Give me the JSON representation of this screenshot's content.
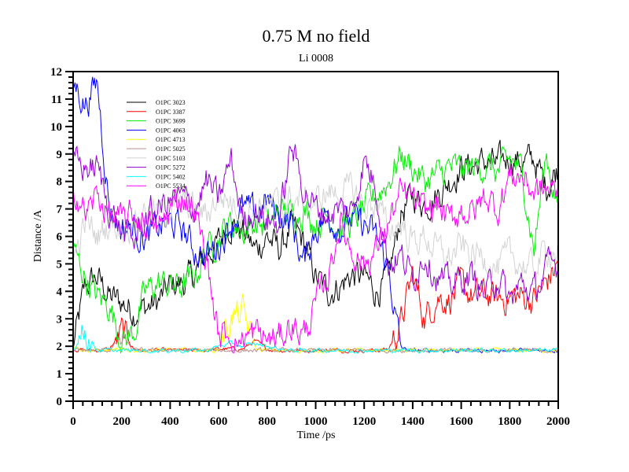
{
  "chart_data": {
    "type": "line",
    "title": "0.75 M no field",
    "subtitle": "Li 0008",
    "xlabel": "Time /ps",
    "ylabel": "Distance /A",
    "xlim": [
      0,
      2000
    ],
    "ylim": [
      0,
      12
    ],
    "x_ticks": [
      "0",
      "200",
      "400",
      "600",
      "800",
      "1000",
      "1200",
      "1400",
      "1600",
      "1800",
      "2000"
    ],
    "y_ticks": [
      "0",
      "1",
      "2",
      "3",
      "4",
      "5",
      "6",
      "7",
      "8",
      "9",
      "10",
      "11",
      "12"
    ],
    "grid": false,
    "legend_position": "top-left",
    "x_step": 50,
    "series": [
      {
        "name": "O1PC 3023",
        "color": "#000000",
        "values": [
          1.9,
          4.2,
          4.5,
          3.8,
          3.6,
          3.3,
          3.4,
          3.6,
          4.2,
          4.3,
          4.6,
          5.3,
          5.8,
          6.5,
          6.2,
          5.5,
          6.0,
          5.5,
          6.3,
          5.8,
          4.5,
          4.0,
          4.2,
          4.6,
          4.5,
          4.0,
          4.4,
          6.8,
          7.5,
          7.2,
          7.5,
          8.0,
          8.5,
          8.6,
          8.7,
          8.6,
          8.9,
          8.7,
          8.8,
          7.8,
          8.5
        ]
      },
      {
        "name": "O1PC 3387",
        "color": "#ff0000",
        "values": [
          1.9,
          1.85,
          1.85,
          1.9,
          2.5,
          1.9,
          1.85,
          1.85,
          1.85,
          1.85,
          1.85,
          1.85,
          1.9,
          1.9,
          1.9,
          2.2,
          1.9,
          1.85,
          1.85,
          1.85,
          1.85,
          1.85,
          1.85,
          1.85,
          1.85,
          1.85,
          1.9,
          2.8,
          4.6,
          3.0,
          3.8,
          3.7,
          4.2,
          3.8,
          3.9,
          3.7,
          3.8,
          3.8,
          3.7,
          4.3,
          5.0
        ]
      },
      {
        "name": "O1PC 3699",
        "color": "#00ee00",
        "values": [
          5.5,
          4.5,
          3.8,
          3.5,
          2.2,
          2.5,
          4.0,
          4.3,
          4.2,
          4.2,
          4.5,
          5.5,
          6.0,
          6.5,
          6.2,
          6.5,
          6.3,
          7.0,
          6.8,
          7.0,
          6.5,
          6.8,
          6.3,
          6.5,
          7.0,
          7.5,
          8.0,
          9.0,
          8.5,
          8.0,
          8.2,
          8.5,
          8.4,
          8.5,
          8.6,
          8.3,
          8.8,
          8.4,
          5.5,
          9.0,
          7.0
        ]
      },
      {
        "name": "O1PC 4063",
        "color": "#0000ff",
        "values": [
          11.7,
          10.8,
          11.6,
          7.0,
          6.3,
          6.3,
          5.9,
          6.3,
          6.5,
          6.3,
          5.5,
          5.3,
          5.7,
          6.5,
          7.0,
          6.8,
          7.3,
          6.8,
          6.5,
          5.0,
          6.3,
          6.8,
          6.3,
          6.6,
          6.4,
          6.0,
          4.8,
          1.9,
          1.85,
          1.85,
          1.85,
          1.85,
          1.85,
          1.85,
          1.85,
          1.85,
          1.85,
          1.85,
          1.85,
          1.85,
          1.85
        ]
      },
      {
        "name": "O1PC 4713",
        "color": "#ffff00",
        "values": [
          2.0,
          1.85,
          1.85,
          1.85,
          1.85,
          1.85,
          1.85,
          1.85,
          1.85,
          1.85,
          1.85,
          1.85,
          1.85,
          3.0,
          3.2,
          1.9,
          1.85,
          1.85,
          1.85,
          1.85,
          1.85,
          1.85,
          1.85,
          1.85,
          1.85,
          1.85,
          1.85,
          1.85,
          1.85,
          1.85,
          1.85,
          1.85,
          1.85,
          1.85,
          1.85,
          1.85,
          1.85,
          1.85,
          1.85,
          1.85,
          1.85
        ]
      },
      {
        "name": "O1PC 5025",
        "color": "#bc8f8f",
        "values": [
          1.85,
          1.85,
          1.85,
          1.85,
          2.3,
          1.85,
          1.85,
          1.85,
          1.85,
          1.85,
          1.85,
          1.85,
          1.85,
          1.85,
          1.85,
          1.85,
          1.85,
          1.85,
          1.85,
          1.85,
          1.85,
          1.85,
          1.85,
          1.85,
          1.85,
          1.85,
          1.85,
          1.85,
          1.85,
          1.85,
          1.85,
          1.85,
          1.85,
          1.85,
          1.85,
          1.85,
          1.85,
          1.85,
          1.85,
          1.85,
          1.85
        ]
      },
      {
        "name": "O1PC 5103",
        "color": "#d3d3d3",
        "values": [
          5.0,
          6.5,
          6.0,
          6.5,
          6.3,
          6.5,
          7.0,
          6.8,
          7.0,
          7.2,
          7.0,
          6.8,
          7.5,
          7.3,
          6.9,
          7.0,
          7.1,
          7.1,
          7.3,
          7.3,
          7.2,
          7.6,
          7.6,
          7.7,
          7.1,
          7.2,
          6.2,
          6.5,
          5.8,
          6.0,
          5.5,
          5.2,
          5.6,
          5.3,
          5.3,
          4.8,
          5.3,
          5.0,
          4.8,
          5.5,
          5.5
        ]
      },
      {
        "name": "O1PC 5272",
        "color": "#9400d3",
        "values": [
          8.7,
          8.5,
          8.5,
          7.0,
          6.2,
          5.8,
          6.7,
          7.0,
          7.3,
          7.4,
          7.0,
          8.0,
          7.3,
          8.8,
          6.6,
          7.0,
          6.6,
          6.5,
          9.3,
          7.8,
          7.0,
          6.8,
          7.0,
          6.9,
          8.8,
          7.8,
          5.0,
          5.3,
          4.5,
          5.4,
          4.5,
          4.2,
          4.5,
          4.5,
          3.9,
          4.6,
          3.6,
          4.3,
          3.9,
          4.8,
          5.0
        ]
      },
      {
        "name": "O1PC 5402",
        "color": "#00ffff",
        "values": [
          1.85,
          2.6,
          1.85,
          1.85,
          1.85,
          1.85,
          1.85,
          1.85,
          1.85,
          1.85,
          1.85,
          1.85,
          2.0,
          2.1,
          2.0,
          2.1,
          2.0,
          1.9,
          1.85,
          1.85,
          1.85,
          1.85,
          1.85,
          1.85,
          1.85,
          1.85,
          1.85,
          1.85,
          1.85,
          1.85,
          1.85,
          1.85,
          1.85,
          1.85,
          1.85,
          1.85,
          1.85,
          1.85,
          1.85,
          1.85,
          1.85
        ]
      },
      {
        "name": "O1PC 5534",
        "color": "#ff00ff",
        "values": [
          8.0,
          6.8,
          7.5,
          6.8,
          6.5,
          6.8,
          6.5,
          6.2,
          7.0,
          7.5,
          7.0,
          5.2,
          2.3,
          2.5,
          2.2,
          2.5,
          2.2,
          2.3,
          2.8,
          2.4,
          3.5,
          4.5,
          6.5,
          5.5,
          5.0,
          5.5,
          6.5,
          7.5,
          7.4,
          6.8,
          7.2,
          6.5,
          7.0,
          6.8,
          7.5,
          7.0,
          8.2,
          8.2,
          7.6,
          7.7,
          7.6
        ]
      }
    ]
  }
}
